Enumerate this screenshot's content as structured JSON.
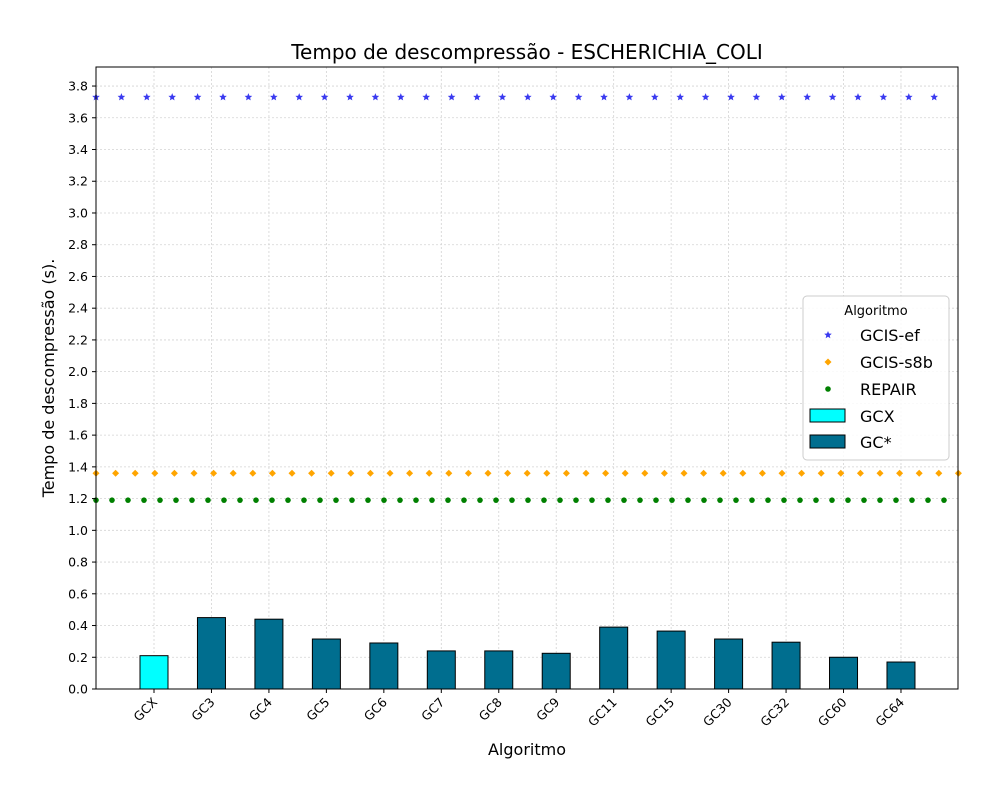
{
  "chart_data": {
    "type": "bar",
    "title": "Tempo de descompressão -  ESCHERICHIA_COLI",
    "xlabel": "Algoritmo",
    "ylabel": "Tempo de descompressão (s).",
    "ylim": [
      0,
      3.92
    ],
    "yticks": [
      "0.0",
      "0.2",
      "0.4",
      "0.6",
      "0.8",
      "1.0",
      "1.2",
      "1.4",
      "1.6",
      "1.8",
      "2.0",
      "2.2",
      "2.4",
      "2.6",
      "2.8",
      "3.0",
      "3.2",
      "3.4",
      "3.6",
      "3.8"
    ],
    "grid": true,
    "categories": [
      "GCX",
      "GC3",
      "GC4",
      "GC5",
      "GC6",
      "GC7",
      "GC8",
      "GC9",
      "GC11",
      "GC15",
      "GC30",
      "GC32",
      "GC60",
      "GC64"
    ],
    "bars": [
      {
        "name": "GCX",
        "color": "#00ffff",
        "values": [
          0.21,
          null,
          null,
          null,
          null,
          null,
          null,
          null,
          null,
          null,
          null,
          null,
          null,
          null
        ]
      },
      {
        "name": "GC*",
        "color": "#006e8f",
        "values": [
          null,
          0.45,
          0.44,
          0.315,
          0.29,
          0.24,
          0.24,
          0.225,
          0.39,
          0.365,
          0.315,
          0.295,
          0.2,
          0.17
        ]
      }
    ],
    "reference_lines": [
      {
        "name": "GCIS-ef",
        "value": 3.73,
        "color": "#3a3af0",
        "marker": "star"
      },
      {
        "name": "GCIS-s8b",
        "value": 1.36,
        "color": "#ffa500",
        "marker": "diamond"
      },
      {
        "name": "REPAIR",
        "value": 1.19,
        "color": "#008000",
        "marker": "circle"
      }
    ],
    "legend": {
      "title": "Algoritmo",
      "placement": "center-right",
      "entries": [
        "GCIS-ef",
        "GCIS-s8b",
        "REPAIR",
        "GCX",
        "GC*"
      ]
    }
  }
}
